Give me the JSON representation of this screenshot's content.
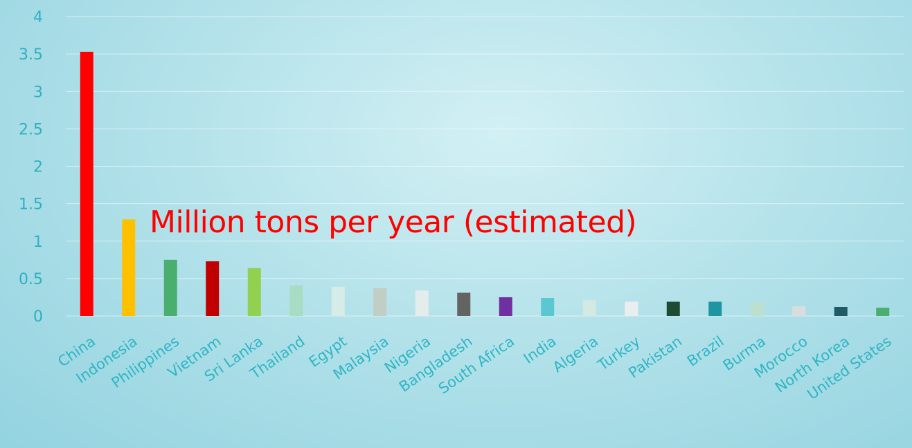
{
  "chart_data": {
    "type": "bar",
    "title": "",
    "xlabel": "",
    "ylabel": "",
    "annotation": "Million tons per year (estimated)",
    "ylim": [
      0,
      4
    ],
    "yticks": [
      0,
      0.5,
      1,
      1.5,
      2,
      2.5,
      3,
      3.5,
      4
    ],
    "ytick_labels": [
      "0",
      "0.5",
      "1",
      "1.5",
      "2",
      "2.5",
      "3",
      "3.5",
      "4"
    ],
    "grid": true,
    "legend": "none",
    "categories": [
      "China",
      "Indonesia",
      "Philippines",
      "Vietnam",
      "Sri Lanka",
      "Thailand",
      "Egypt",
      "Malaysia",
      "Nigeria",
      "Bangladesh",
      "South Africa",
      "India",
      "Algeria",
      "Turkey",
      "Pakistan",
      "Brazil",
      "Burma",
      "Morocco",
      "North Korea",
      "United States"
    ],
    "values": [
      3.53,
      1.29,
      0.75,
      0.73,
      0.64,
      0.41,
      0.39,
      0.37,
      0.34,
      0.31,
      0.25,
      0.24,
      0.21,
      0.19,
      0.19,
      0.19,
      0.18,
      0.13,
      0.12,
      0.11
    ],
    "colors": [
      "#ff0000",
      "#ffc000",
      "#4aae6e",
      "#c00000",
      "#92d050",
      "#a9dcc4",
      "#d5ede6",
      "#c2cdc6",
      "#e4ecec",
      "#636363",
      "#7030a0",
      "#5bc7d1",
      "#d2eae2",
      "#e9eff0",
      "#1f4a33",
      "#2095a2",
      "#bbe0cd",
      "#d9dddd",
      "#205a64",
      "#4aae6e"
    ]
  }
}
